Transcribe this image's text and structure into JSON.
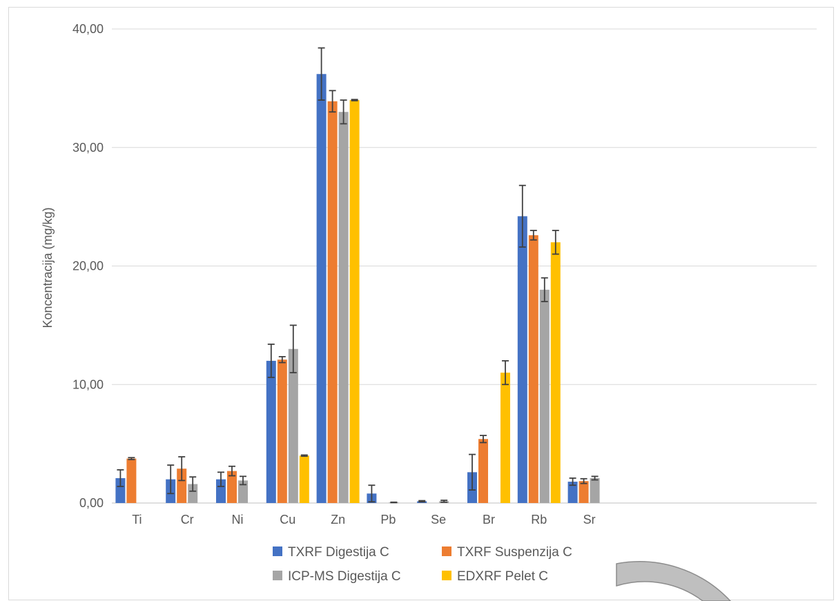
{
  "chart_data": {
    "type": "bar",
    "categories": [
      "Ti",
      "Cr",
      "Ni",
      "Cu",
      "Zn",
      "Pb",
      "Se",
      "Br",
      "Rb",
      "Sr"
    ],
    "series": [
      {
        "name": "TXRF Digestija C",
        "color": "#4472c4",
        "values": [
          2.1,
          2.0,
          2.0,
          12.0,
          36.2,
          0.8,
          0.15,
          2.6,
          24.2,
          1.8
        ],
        "errors": [
          0.7,
          1.2,
          0.6,
          1.4,
          2.2,
          0.7,
          0.05,
          1.5,
          2.6,
          0.3
        ]
      },
      {
        "name": "TXRF Suspenzija C",
        "color": "#ed7d31",
        "values": [
          3.75,
          2.9,
          2.7,
          12.1,
          33.9,
          null,
          null,
          5.4,
          22.6,
          1.85
        ],
        "errors": [
          0.08,
          1.0,
          0.4,
          0.25,
          0.9,
          null,
          null,
          0.3,
          0.4,
          0.2
        ]
      },
      {
        "name": "ICP-MS Digestija C",
        "color": "#a5a5a5",
        "values": [
          null,
          1.6,
          1.9,
          13.0,
          33.0,
          0.05,
          0.15,
          null,
          18.0,
          2.1
        ],
        "errors": [
          null,
          0.6,
          0.35,
          2.0,
          1.0,
          0.02,
          0.08,
          null,
          1.0,
          0.15
        ]
      },
      {
        "name": "EDXRF Pelet C",
        "color": "#ffc000",
        "values": [
          null,
          null,
          null,
          4.0,
          34.0,
          null,
          null,
          11.0,
          22.0,
          null
        ],
        "errors": [
          null,
          null,
          null,
          0.05,
          0.05,
          null,
          null,
          1.0,
          1.0,
          null
        ]
      }
    ],
    "yticks": [
      "0,00",
      "10,00",
      "20,00",
      "30,00",
      "40,00"
    ],
    "ylim": [
      0,
      40
    ],
    "ylabel": "Koncentracija (mg/kg)",
    "xlabel": "",
    "title": "",
    "grid": true,
    "legend_position": "bottom"
  }
}
